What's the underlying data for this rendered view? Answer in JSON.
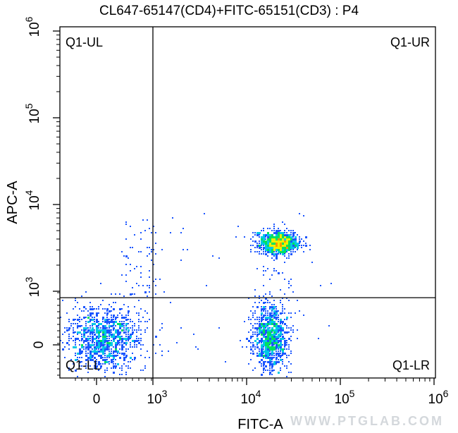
{
  "chart_data": {
    "type": "scatter",
    "title": "CL647-65147(CD4)+FITC-65151(CD3) : P4",
    "xlabel": "FITC-A",
    "ylabel": "APC-A",
    "x_scale": "biexponential",
    "y_scale": "biexponential",
    "xlim": [
      -400,
      1000000
    ],
    "ylim": [
      -350,
      1000000
    ],
    "x_ticks": [
      {
        "value": 0,
        "label": "0"
      },
      {
        "value": 1000,
        "label": "10",
        "exp": "3"
      },
      {
        "value": 10000,
        "label": "10",
        "exp": "4"
      },
      {
        "value": 100000,
        "label": "10",
        "exp": "5"
      },
      {
        "value": 1000000,
        "label": "10",
        "exp": "6"
      }
    ],
    "y_ticks": [
      {
        "value": 0,
        "label": "0"
      },
      {
        "value": 1000,
        "label": "10",
        "exp": "3"
      },
      {
        "value": 10000,
        "label": "10",
        "exp": "4"
      },
      {
        "value": 100000,
        "label": "10",
        "exp": "5"
      },
      {
        "value": 1000000,
        "label": "10",
        "exp": "6"
      }
    ],
    "gates": {
      "x": 1000,
      "y": 880
    },
    "quadrants": [
      {
        "id": "ul",
        "label": "Q1-UL"
      },
      {
        "id": "ur",
        "label": "Q1-UR"
      },
      {
        "id": "ll",
        "label": "Q1-LL"
      },
      {
        "id": "lr",
        "label": "Q1-LR"
      }
    ],
    "populations": [
      {
        "name": "",
        "center": [
          150,
          100
        ],
        "spread_decades": [
          0.38,
          0.35
        ],
        "count": 1100
      },
      {
        "name": "",
        "center": [
          22000,
          3600
        ],
        "spread_decades": [
          0.2,
          0.12
        ],
        "count": 1000
      },
      {
        "name": "",
        "center": [
          18000,
          120
        ],
        "spread_decades": [
          0.17,
          0.35
        ],
        "count": 900
      }
    ],
    "density_colors": [
      "#0000e0",
      "#1a55ff",
      "#00c8e6",
      "#00e060",
      "#f0f000",
      "#ff9900"
    ],
    "grid": false
  },
  "watermark": "WWW.PTGLAB.COM"
}
